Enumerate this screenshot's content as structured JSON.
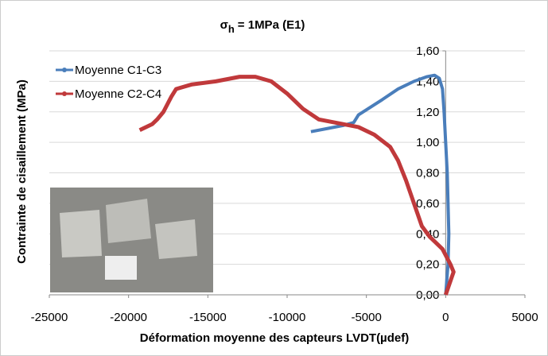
{
  "chart_data": {
    "type": "line",
    "title": {
      "symbol": "σ",
      "subscript": "h",
      "text": "= 1MPa (E1)"
    },
    "x_label": "Déformation moyenne des capteurs LVDT(µdef)",
    "y_label": "Contrainte de cisaillement (MPa)",
    "xlim": [
      -25000,
      5000
    ],
    "xticks": [
      -25000,
      -20000,
      -15000,
      -10000,
      -5000,
      0,
      5000
    ],
    "ylim": [
      0,
      1.6
    ],
    "yticks": [
      {
        "value": 0,
        "label": "0,00"
      },
      {
        "value": 0.2,
        "label": "0,20"
      },
      {
        "value": 0.4,
        "label": "0,40"
      },
      {
        "value": 0.6,
        "label": "0,60"
      },
      {
        "value": 0.8,
        "label": "0,80"
      },
      {
        "value": 1.0,
        "label": "1,00"
      },
      {
        "value": 1.2,
        "label": "1,20"
      },
      {
        "value": 1.4,
        "label": "1,40"
      },
      {
        "value": 1.6,
        "label": "1,60"
      }
    ],
    "grid": true,
    "legend": "top-left",
    "series": [
      {
        "name": "Moyenne C1-C3",
        "color": "#4a7ebb",
        "x": [
          0,
          150,
          200,
          150,
          100,
          0,
          -100,
          -200,
          -400,
          -700,
          -1200,
          -2000,
          -3000,
          -4000,
          -5500,
          -5800,
          -6500,
          -7500,
          -8500
        ],
        "values": [
          0,
          0.2,
          0.4,
          0.6,
          0.8,
          1.0,
          1.2,
          1.35,
          1.42,
          1.44,
          1.43,
          1.4,
          1.35,
          1.28,
          1.18,
          1.13,
          1.11,
          1.09,
          1.07
        ]
      },
      {
        "name": "Moyenne C2-C4",
        "color": "#c0393b",
        "x": [
          0,
          500,
          300,
          -200,
          -1000,
          -1500,
          -2000,
          -2500,
          -3000,
          -3500,
          -4500,
          -5500,
          -6500,
          -8000,
          -9000,
          -10000,
          -11000,
          -12000,
          -13000,
          -14500,
          -16000,
          -17000,
          -17300,
          -17800,
          -18200,
          -18500,
          -19300
        ],
        "values": [
          0,
          0.15,
          0.2,
          0.3,
          0.38,
          0.45,
          0.6,
          0.75,
          0.88,
          0.97,
          1.05,
          1.1,
          1.12,
          1.15,
          1.22,
          1.32,
          1.4,
          1.43,
          1.43,
          1.4,
          1.38,
          1.35,
          1.3,
          1.2,
          1.15,
          1.12,
          1.08
        ]
      }
    ]
  }
}
